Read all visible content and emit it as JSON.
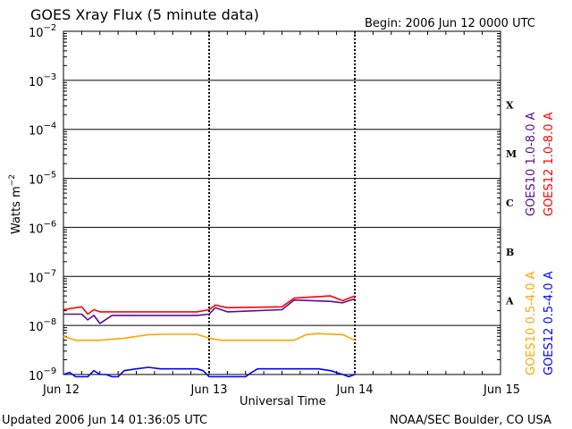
{
  "header": {
    "title": "GOES Xray Flux (5 minute data)",
    "begin": "Begin:  2006 Jun 12 0000 UTC"
  },
  "footer": {
    "updated": "Updated 2006 Jun 14 01:36:05 UTC",
    "credit": "NOAA/SEC Boulder, CO USA"
  },
  "chart_data": {
    "type": "line",
    "title": "GOES Xray Flux (5 minute data)",
    "xlabel": "Universal Time",
    "ylabel": "Watts m-2",
    "yscale": "log",
    "ylim": [
      1e-09,
      0.01
    ],
    "xlim": [
      0,
      72
    ],
    "x_unit": "hours since 2006 Jun 12 0000 UTC",
    "x_ticks": [
      {
        "x": 0,
        "label": "Jun 12"
      },
      {
        "x": 24,
        "label": "Jun 13"
      },
      {
        "x": 48,
        "label": "Jun 14"
      },
      {
        "x": 72,
        "label": "Jun 15"
      }
    ],
    "y_ticks": [
      {
        "exp": -9,
        "label": "10-9"
      },
      {
        "exp": -8,
        "label": "10-8"
      },
      {
        "exp": -7,
        "label": "10-7"
      },
      {
        "exp": -6,
        "label": "10-6"
      },
      {
        "exp": -5,
        "label": "10-5"
      },
      {
        "exp": -4,
        "label": "10-4"
      },
      {
        "exp": -3,
        "label": "10-3"
      },
      {
        "exp": -2,
        "label": "10-2"
      }
    ],
    "flare_classes": [
      {
        "label": "X",
        "exp": -3.5
      },
      {
        "label": "M",
        "exp": -4.5
      },
      {
        "label": "C",
        "exp": -5.5
      },
      {
        "label": "B",
        "exp": -6.5
      },
      {
        "label": "A",
        "exp": -7.5
      }
    ],
    "grid": true,
    "legend": "right-side vertical",
    "series": [
      {
        "name": "GOES10 1.0-8.0 A",
        "color": "#5a0a96",
        "x": [
          0,
          3,
          4,
          5,
          6,
          8,
          10,
          18,
          22,
          24,
          25,
          27,
          36,
          38,
          44,
          46,
          48
        ],
        "y": [
          1.7e-08,
          1.7e-08,
          1.3e-08,
          1.6e-08,
          1.1e-08,
          1.6e-08,
          1.6e-08,
          1.6e-08,
          1.6e-08,
          1.7e-08,
          2.3e-08,
          1.9e-08,
          2.1e-08,
          3.3e-08,
          3.1e-08,
          2.9e-08,
          3.5e-08
        ]
      },
      {
        "name": "GOES12 1.0-8.0 A",
        "color": "#ff0000",
        "x": [
          0,
          3,
          4,
          5,
          6,
          8,
          10,
          18,
          22,
          24,
          25,
          27,
          36,
          38,
          44,
          46,
          48
        ],
        "y": [
          2.1e-08,
          2.4e-08,
          1.7e-08,
          2.1e-08,
          1.9e-08,
          1.9e-08,
          1.9e-08,
          1.9e-08,
          1.9e-08,
          2.1e-08,
          2.6e-08,
          2.3e-08,
          2.4e-08,
          3.6e-08,
          4e-08,
          3.2e-08,
          4e-08
        ]
      },
      {
        "name": "GOES10 0.5-4.0 A",
        "color": "#ffa500",
        "x": [
          0,
          2,
          6,
          10,
          14,
          17,
          22,
          24,
          26,
          30,
          38,
          40,
          42,
          46,
          48
        ],
        "y": [
          6e-09,
          5e-09,
          5e-09,
          5.5e-09,
          6.5e-09,
          6.6e-09,
          6.6e-09,
          5.5e-09,
          5e-09,
          5e-09,
          5e-09,
          6.5e-09,
          6.8e-09,
          6.5e-09,
          5e-09
        ]
      },
      {
        "name": "GOES12 0.5-4.0 A",
        "color": "#0000ff",
        "x": [
          0,
          1,
          2,
          4,
          5,
          6,
          7,
          8,
          9,
          10,
          12,
          14,
          16,
          18,
          20,
          22,
          23,
          24,
          25,
          26,
          30,
          31,
          32,
          34,
          36,
          40,
          42,
          44,
          46,
          47,
          48
        ],
        "y": [
          1e-09,
          1.1e-09,
          9e-10,
          9e-10,
          1.2e-09,
          1e-09,
          1e-09,
          9e-10,
          9e-10,
          1.2e-09,
          1.3e-09,
          1.4e-09,
          1.3e-09,
          1.3e-09,
          1.3e-09,
          1.3e-09,
          1.2e-09,
          9e-10,
          9e-10,
          9e-10,
          9e-10,
          1.1e-09,
          1.3e-09,
          1.3e-09,
          1.3e-09,
          1.3e-09,
          1.3e-09,
          1.2e-09,
          1e-09,
          9e-10,
          1e-09
        ]
      }
    ]
  }
}
